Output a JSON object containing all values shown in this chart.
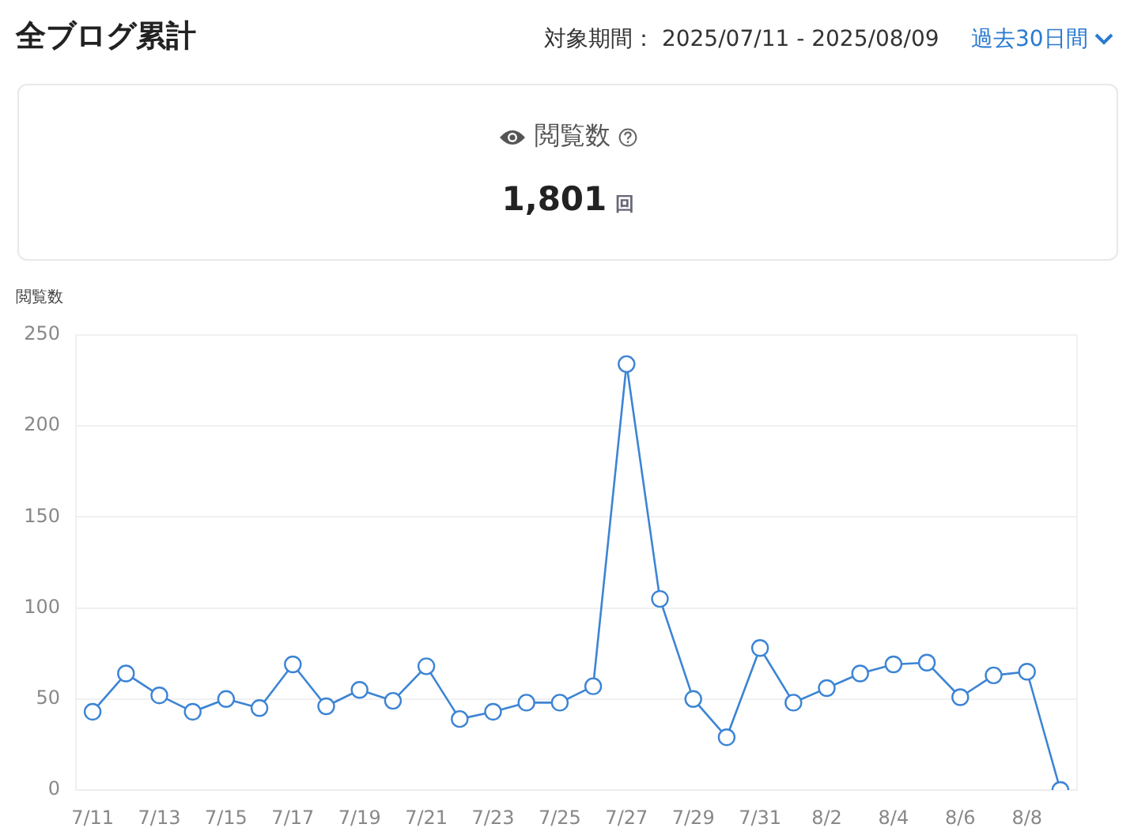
{
  "chart_data": {
    "type": "line",
    "title": "全ブログ累計",
    "subtitle": "閲覧数",
    "ylabel": "閲覧数",
    "annotations": [
      "対象期間： 2025/07/11 - 2025/08/09",
      "過去30日間",
      "1,801",
      "回"
    ],
    "categories": [
      "7/11",
      null,
      "7/13",
      null,
      "7/15",
      null,
      "7/17",
      null,
      "7/19",
      null,
      "7/21",
      null,
      "7/23",
      null,
      "7/25",
      null,
      "7/27",
      null,
      "7/29",
      null,
      "7/31",
      null,
      "8/2",
      null,
      "8/4",
      null,
      "8/6",
      null,
      "8/8",
      null
    ],
    "series": [
      {
        "color": "#3c84d4",
        "values": [
          43,
          64,
          52,
          43,
          50,
          45,
          69,
          46,
          55,
          49,
          68,
          39,
          43,
          48,
          48,
          57,
          234,
          105,
          50,
          29,
          78,
          48,
          56,
          64,
          69,
          70,
          51,
          63,
          65,
          0
        ]
      }
    ],
    "ylim": [
      0,
      250
    ],
    "yticks": [
      0,
      50,
      100,
      150,
      200,
      250
    ],
    "grid": "y",
    "legend": false,
    "marker": "circle",
    "line_style": "solid"
  }
}
